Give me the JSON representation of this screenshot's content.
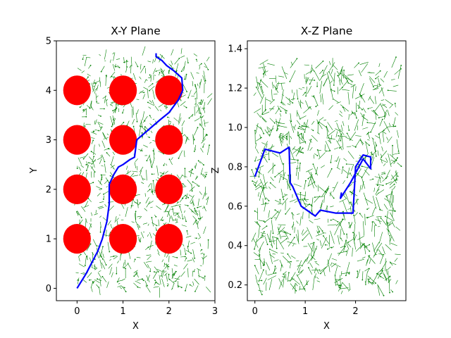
{
  "chart_data": [
    {
      "type": "scatter",
      "title": "X-Y Plane",
      "xlabel": "X",
      "ylabel": "Y",
      "xlim": [
        -0.45,
        3.0
      ],
      "ylim": [
        -0.25,
        5.0
      ],
      "xticks": [
        "0",
        "1",
        "2",
        "3"
      ],
      "yticks": [
        "0",
        "1",
        "2",
        "3",
        "4",
        "5"
      ],
      "grid": false,
      "obstacles": {
        "color": "#ff0000",
        "radius": 0.3,
        "centers": [
          [
            0,
            1
          ],
          [
            1,
            1
          ],
          [
            2,
            1
          ],
          [
            0,
            2
          ],
          [
            1,
            2
          ],
          [
            2,
            2
          ],
          [
            0,
            3
          ],
          [
            1,
            3
          ],
          [
            2,
            3
          ],
          [
            0,
            4
          ],
          [
            1,
            4
          ],
          [
            2,
            4
          ]
        ]
      },
      "tree": {
        "name": "RRT tree",
        "color": "#008000",
        "approx_edges": 900,
        "region": {
          "x": [
            0.0,
            2.85
          ],
          "y": [
            0.0,
            4.75
          ]
        }
      },
      "path": {
        "name": "path",
        "color": "#0000ff",
        "points": [
          [
            0.0,
            0.0
          ],
          [
            0.2,
            0.3
          ],
          [
            0.45,
            0.75
          ],
          [
            0.55,
            1.0
          ],
          [
            0.65,
            1.35
          ],
          [
            0.7,
            1.7
          ],
          [
            0.7,
            2.1
          ],
          [
            0.8,
            2.3
          ],
          [
            0.9,
            2.45
          ],
          [
            1.0,
            2.5
          ],
          [
            1.15,
            2.6
          ],
          [
            1.25,
            2.65
          ],
          [
            1.3,
            3.0
          ],
          [
            1.55,
            3.2
          ],
          [
            1.8,
            3.4
          ],
          [
            2.0,
            3.55
          ],
          [
            2.2,
            3.8
          ],
          [
            2.3,
            4.0
          ],
          [
            2.28,
            4.25
          ],
          [
            2.1,
            4.4
          ],
          [
            1.95,
            4.5
          ],
          [
            1.85,
            4.6
          ],
          [
            1.72,
            4.68
          ],
          [
            1.72,
            4.75
          ]
        ]
      }
    },
    {
      "type": "scatter",
      "title": "X-Z Plane",
      "xlabel": "X",
      "ylabel": "Z",
      "xlim": [
        -0.15,
        3.0
      ],
      "ylim": [
        0.12,
        1.44
      ],
      "xticks": [
        "0",
        "1",
        "2"
      ],
      "yticks": [
        "0.2",
        "0.4",
        "0.6",
        "0.8",
        "1.0",
        "1.2",
        "1.4"
      ],
      "grid": false,
      "tree": {
        "name": "RRT tree",
        "color": "#008000",
        "approx_edges": 900,
        "region": {
          "x": [
            0.0,
            2.85
          ],
          "z": [
            0.17,
            1.32
          ]
        }
      },
      "path": {
        "name": "path",
        "color": "#0000ff",
        "points": [
          [
            0.0,
            0.75
          ],
          [
            0.2,
            0.89
          ],
          [
            0.5,
            0.87
          ],
          [
            0.68,
            0.9
          ],
          [
            0.7,
            0.72
          ],
          [
            0.75,
            0.7
          ],
          [
            0.92,
            0.6
          ],
          [
            1.2,
            0.55
          ],
          [
            1.3,
            0.58
          ],
          [
            1.6,
            0.565
          ],
          [
            1.95,
            0.565
          ],
          [
            2.0,
            0.8
          ],
          [
            2.15,
            0.86
          ],
          [
            2.3,
            0.85
          ],
          [
            2.3,
            0.79
          ],
          [
            2.15,
            0.84
          ],
          [
            1.9,
            0.72
          ],
          [
            1.75,
            0.66
          ],
          [
            1.7,
            0.64
          ],
          [
            1.72,
            0.67
          ]
        ]
      }
    }
  ]
}
